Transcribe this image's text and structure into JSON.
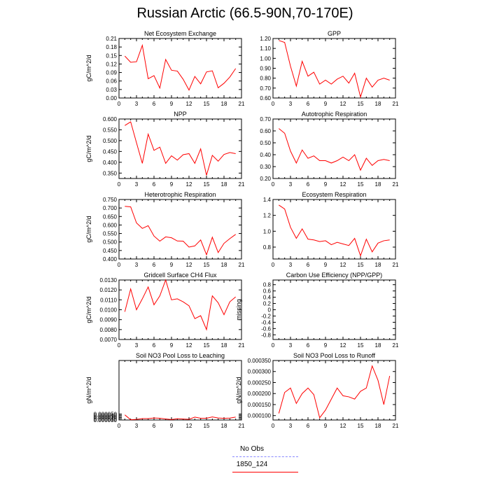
{
  "title": "Russian Arctic (66.5-90N,70-170E)",
  "legend": [
    {
      "label": "No Obs",
      "color": "#8888ff",
      "dash": "dashed"
    },
    {
      "label": "1850_124",
      "color": "#ff0000",
      "dash": "solid"
    }
  ],
  "chart_data": [
    {
      "type": "line",
      "title": "Net Ecosystem Exchange",
      "ylabel": "gC/m^2/d",
      "xlim": [
        0,
        21
      ],
      "xticks": [
        0,
        3,
        6,
        9,
        12,
        15,
        18,
        21
      ],
      "ylim": [
        0.0,
        0.21
      ],
      "yticks": [
        "0.00",
        "0.03",
        "0.06",
        "0.09",
        "0.12",
        "0.15",
        "0.18",
        "0.21"
      ],
      "series": [
        {
          "x": [
            1,
            2,
            3,
            4,
            5,
            6,
            7,
            8,
            9,
            10,
            11,
            12,
            13,
            14,
            15,
            16,
            17,
            18,
            19,
            20
          ],
          "values": [
            0.148,
            0.126,
            0.128,
            0.186,
            0.068,
            0.079,
            0.035,
            0.136,
            0.098,
            0.095,
            0.066,
            0.028,
            0.076,
            0.05,
            0.092,
            0.096,
            0.036,
            0.052,
            0.074,
            0.104
          ]
        }
      ]
    },
    {
      "type": "line",
      "title": "GPP",
      "ylabel": "",
      "xlim": [
        0,
        21
      ],
      "xticks": [
        0,
        3,
        6,
        9,
        12,
        15,
        18,
        21
      ],
      "ylim": [
        0.6,
        1.2
      ],
      "yticks": [
        "0.60",
        "0.70",
        "0.80",
        "0.90",
        "1.00",
        "1.10",
        "1.20"
      ],
      "series": [
        {
          "x": [
            1,
            2,
            3,
            4,
            5,
            6,
            7,
            8,
            9,
            10,
            11,
            12,
            13,
            14,
            15,
            16,
            17,
            18,
            19,
            20
          ],
          "values": [
            1.18,
            1.16,
            0.92,
            0.72,
            0.97,
            0.82,
            0.86,
            0.74,
            0.78,
            0.74,
            0.79,
            0.82,
            0.75,
            0.85,
            0.61,
            0.8,
            0.71,
            0.78,
            0.8,
            0.78
          ]
        }
      ]
    },
    {
      "type": "line",
      "title": "NPP",
      "ylabel": "gC/m^2/d",
      "xlim": [
        0,
        21
      ],
      "xticks": [
        0,
        3,
        6,
        9,
        12,
        15,
        18,
        21
      ],
      "ylim": [
        0.325,
        0.6
      ],
      "yticks": [
        "0.350",
        "0.400",
        "0.450",
        "0.500",
        "0.550",
        "0.600"
      ],
      "series": [
        {
          "x": [
            1,
            2,
            3,
            4,
            5,
            6,
            7,
            8,
            9,
            10,
            11,
            12,
            13,
            14,
            15,
            16,
            17,
            18,
            19,
            20
          ],
          "values": [
            0.57,
            0.587,
            0.49,
            0.395,
            0.53,
            0.455,
            0.47,
            0.395,
            0.43,
            0.41,
            0.435,
            0.44,
            0.395,
            0.462,
            0.34,
            0.432,
            0.405,
            0.436,
            0.445,
            0.44
          ]
        }
      ]
    },
    {
      "type": "line",
      "title": "Autotrophic Respiration",
      "ylabel": "",
      "xlim": [
        0,
        21
      ],
      "xticks": [
        0,
        3,
        6,
        9,
        12,
        15,
        18,
        21
      ],
      "ylim": [
        0.2,
        0.7
      ],
      "yticks": [
        "0.20",
        "0.30",
        "0.40",
        "0.50",
        "0.60",
        "0.70"
      ],
      "series": [
        {
          "x": [
            1,
            2,
            3,
            4,
            5,
            6,
            7,
            8,
            9,
            10,
            11,
            12,
            13,
            14,
            15,
            16,
            17,
            18,
            19,
            20
          ],
          "values": [
            0.62,
            0.58,
            0.43,
            0.33,
            0.44,
            0.37,
            0.39,
            0.35,
            0.35,
            0.33,
            0.35,
            0.38,
            0.35,
            0.4,
            0.27,
            0.37,
            0.31,
            0.35,
            0.36,
            0.35
          ]
        }
      ]
    },
    {
      "type": "line",
      "title": "Heterotrophic Respiration",
      "ylabel": "gC/m^2/d",
      "xlim": [
        0,
        21
      ],
      "xticks": [
        0,
        3,
        6,
        9,
        12,
        15,
        18,
        21
      ],
      "ylim": [
        0.4,
        0.75
      ],
      "yticks": [
        "0.400",
        "0.450",
        "0.500",
        "0.550",
        "0.600",
        "0.650",
        "0.700",
        "0.750"
      ],
      "series": [
        {
          "x": [
            1,
            2,
            3,
            4,
            5,
            6,
            7,
            8,
            9,
            10,
            11,
            12,
            13,
            14,
            15,
            16,
            17,
            18,
            19,
            20
          ],
          "values": [
            0.71,
            0.707,
            0.612,
            0.58,
            0.596,
            0.535,
            0.505,
            0.53,
            0.525,
            0.506,
            0.505,
            0.47,
            0.477,
            0.512,
            0.425,
            0.528,
            0.438,
            0.492,
            0.52,
            0.545
          ]
        }
      ]
    },
    {
      "type": "line",
      "title": "Ecosystem Respiration",
      "ylabel": "",
      "xlim": [
        0,
        21
      ],
      "xticks": [
        0,
        3,
        6,
        9,
        12,
        15,
        18,
        21
      ],
      "ylim": [
        0.65,
        1.4
      ],
      "yticks": [
        "0.8",
        "1.0",
        "1.2",
        "1.4"
      ],
      "series": [
        {
          "x": [
            1,
            2,
            3,
            4,
            5,
            6,
            7,
            8,
            9,
            10,
            11,
            12,
            13,
            14,
            15,
            16,
            17,
            18,
            19,
            20
          ],
          "values": [
            1.33,
            1.28,
            1.05,
            0.91,
            1.03,
            0.9,
            0.89,
            0.87,
            0.88,
            0.83,
            0.86,
            0.84,
            0.82,
            0.91,
            0.69,
            0.9,
            0.74,
            0.85,
            0.88,
            0.89
          ]
        }
      ]
    },
    {
      "type": "line",
      "title": "Gridcell Surface CH4 Flux",
      "ylabel": "gC/m^2/d",
      "xlim": [
        0,
        21
      ],
      "xticks": [
        0,
        3,
        6,
        9,
        12,
        15,
        18,
        21
      ],
      "ylim": [
        0.007,
        0.013
      ],
      "yticks": [
        "0.0070",
        "0.0080",
        "0.0090",
        "0.0100",
        "0.0110",
        "0.0120",
        "0.0130"
      ],
      "series": [
        {
          "x": [
            1,
            2,
            3,
            4,
            5,
            6,
            7,
            8,
            9,
            10,
            11,
            12,
            13,
            14,
            15,
            16,
            17,
            18,
            19,
            20
          ],
          "values": [
            0.0098,
            0.0121,
            0.01,
            0.0111,
            0.0123,
            0.0105,
            0.0114,
            0.013,
            0.011,
            0.0111,
            0.0108,
            0.0104,
            0.0091,
            0.0094,
            0.008,
            0.0114,
            0.0107,
            0.0095,
            0.0108,
            0.0113
          ]
        }
      ]
    },
    {
      "type": "line",
      "title": "Carbon Use Efficiency (NPP/GPP)",
      "ylabel": "missing",
      "xlim": [
        0,
        21
      ],
      "xticks": [
        0,
        3,
        6,
        9,
        12,
        15,
        18,
        21
      ],
      "ylim": [
        -0.95,
        0.95
      ],
      "yticks": [
        "-0.8",
        "-0.6",
        "-0.4",
        "-0.2",
        "0",
        "0.2",
        "0.4",
        "0.6",
        "0.8"
      ],
      "series": []
    },
    {
      "type": "line",
      "title": "Soil NO3 Pool Loss to Leaching",
      "ylabel": "gN/m^2/d",
      "xlim": [
        0,
        21
      ],
      "xticks": [
        0,
        3,
        6,
        9,
        12,
        15,
        18,
        21
      ],
      "ylim": [
        0.0,
        0.0005
      ],
      "yticks": [
        "0.000000",
        "0.000010",
        "0.000020",
        "0.000030",
        "0.000040",
        "0.000050"
      ],
      "series": [
        {
          "x": [
            1,
            2,
            3,
            4,
            5,
            6,
            7,
            8,
            9,
            10,
            11,
            12,
            13,
            14,
            15,
            16,
            17,
            18,
            19,
            20
          ],
          "values": [
            4.3e-05,
            2e-06,
            5e-06,
            1.2e-05,
            1.2e-05,
            1.7e-05,
            1.5e-05,
            9e-06,
            4e-06,
            1.1e-05,
            8e-06,
            6e-06,
            2.4e-05,
            1.5e-05,
            1.5e-05,
            2.6e-05,
            1.7e-05,
            1.4e-05,
            1.6e-05,
            2.4e-05
          ]
        }
      ]
    },
    {
      "type": "line",
      "title": "Soil NO3 Pool Loss to Runoff",
      "ylabel": "gN/m^2/d",
      "xlim": [
        0,
        21
      ],
      "xticks": [
        0,
        3,
        6,
        9,
        12,
        15,
        18,
        21
      ],
      "ylim": [
        8e-05,
        0.00035
      ],
      "yticks": [
        "0.000100",
        "0.000150",
        "0.000200",
        "0.000250",
        "0.000300",
        "0.000350"
      ],
      "series": [
        {
          "x": [
            1,
            2,
            3,
            4,
            5,
            6,
            7,
            8,
            9,
            10,
            11,
            12,
            13,
            14,
            15,
            16,
            17,
            18,
            19,
            20
          ],
          "values": [
            0.00011,
            0.000205,
            0.000225,
            0.000155,
            0.0002,
            0.000225,
            0.000195,
            9e-05,
            0.000125,
            0.000175,
            0.000225,
            0.00019,
            0.000185,
            0.000175,
            0.00021,
            0.000225,
            0.000325,
            0.00026,
            0.00015,
            0.00028
          ]
        }
      ]
    }
  ]
}
